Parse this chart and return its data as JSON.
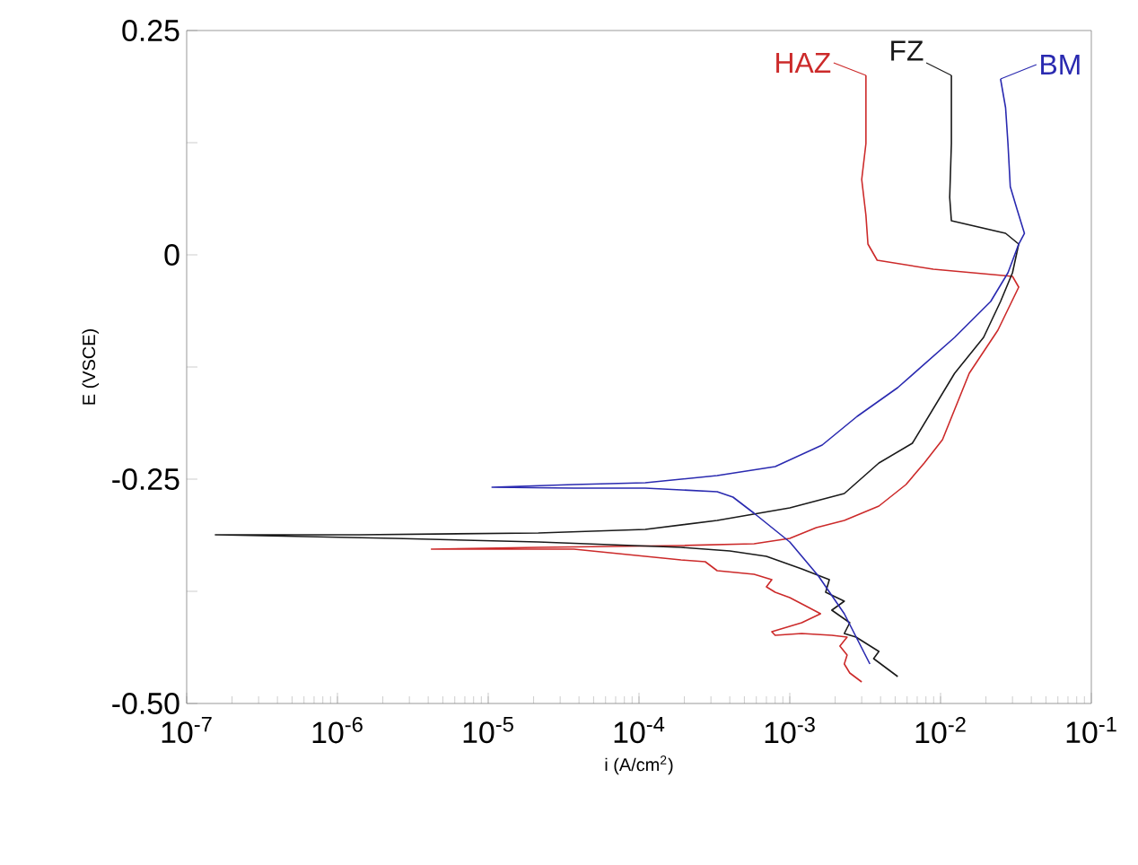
{
  "chart_data": {
    "type": "line",
    "xlabel": "i (A/cm$^{2}$)",
    "ylabel": "E (VSCE)",
    "log": "x",
    "xlim": [
      1e-07,
      0.1
    ],
    "ylim": [
      -0.5,
      0.25
    ],
    "xticks": [
      {
        "value": 1e-07,
        "label": "10$^{-7}$"
      },
      {
        "value": 1e-06,
        "label": "10$^{-6}$"
      },
      {
        "value": 1e-05,
        "label": "10$^{-5}$"
      },
      {
        "value": 0.0001,
        "label": "10$^{-4}$"
      },
      {
        "value": 0.001,
        "label": "10$^{-3}$"
      },
      {
        "value": 0.01,
        "label": "10$^{-2}$"
      },
      {
        "value": 0.1,
        "label": "10$^{-1}$"
      }
    ],
    "yticks": [
      0.25,
      {
        "value": 0.125,
        "label": null
      },
      0,
      {
        "value": -0.125,
        "label": null
      },
      -0.25,
      {
        "value": -0.375,
        "label": null
      },
      {
        "value": -0.5,
        "label": "-0.50"
      }
    ],
    "series": [
      {
        "name": "HAZ",
        "color": "#cc2a2a",
        "x": [
          0.003,
          0.0025,
          0.0023,
          0.0024,
          0.00215,
          0.0024,
          0.0019,
          0.0012,
          0.0008,
          0.00076,
          0.0012,
          0.0016,
          0.0013,
          0.001,
          0.0008,
          0.0007,
          0.00076,
          0.00058,
          0.00033,
          0.000275,
          0.00019,
          3.7e-05,
          4.2e-06,
          2.15e-05,
          0.00019,
          0.00058,
          0.001,
          0.0015,
          0.0023,
          0.0039,
          0.0059,
          0.0078,
          0.0103,
          0.0155,
          0.024,
          0.033,
          0.03,
          0.00895,
          0.0038,
          0.0033,
          0.0032,
          0.003,
          0.0032,
          0.0032
        ],
        "values": [
          -0.476,
          -0.466,
          -0.456,
          -0.446,
          -0.436,
          -0.426,
          -0.424,
          -0.422,
          -0.424,
          -0.42,
          -0.41,
          -0.4,
          -0.392,
          -0.382,
          -0.376,
          -0.37,
          -0.362,
          -0.356,
          -0.352,
          -0.342,
          -0.34,
          -0.328,
          -0.328,
          -0.326,
          -0.324,
          -0.322,
          -0.316,
          -0.304,
          -0.296,
          -0.28,
          -0.256,
          -0.232,
          -0.206,
          -0.132,
          -0.084,
          -0.036,
          -0.024,
          -0.016,
          -0.006,
          0.012,
          0.044,
          0.084,
          0.124,
          0.2
        ]
      },
      {
        "name": "FZ",
        "color": "#1a1a1a",
        "x": [
          0.0052,
          0.0036,
          0.0039,
          0.00275,
          0.0023,
          0.0025,
          0.0019,
          0.0023,
          0.00173,
          0.00183,
          0.0012,
          0.0007,
          0.0004,
          0.00019,
          2.15e-05,
          2.4e-06,
          1.55e-07,
          1.4e-06,
          2.15e-05,
          0.00011,
          0.00033,
          0.001,
          0.0023,
          0.0039,
          0.0065,
          0.0124,
          0.0193,
          0.025,
          0.03,
          0.033,
          0.027,
          0.0118,
          0.0115,
          0.0118,
          0.0118
        ],
        "values": [
          -0.47,
          -0.45,
          -0.442,
          -0.426,
          -0.422,
          -0.41,
          -0.396,
          -0.386,
          -0.376,
          -0.362,
          -0.35,
          -0.336,
          -0.33,
          -0.326,
          -0.32,
          -0.316,
          -0.312,
          -0.312,
          -0.31,
          -0.306,
          -0.296,
          -0.282,
          -0.266,
          -0.232,
          -0.21,
          -0.132,
          -0.092,
          -0.052,
          -0.02,
          0.012,
          0.024,
          0.038,
          0.064,
          0.124,
          0.2
        ]
      },
      {
        "name": "BM",
        "color": "#2a2ab0",
        "x": [
          0.0034,
          0.0023,
          0.00155,
          0.001,
          0.00058,
          0.00042,
          0.00033,
          0.00011,
          3.7e-05,
          1.06e-05,
          3.7e-05,
          0.00011,
          0.00033,
          0.0008,
          0.00164,
          0.0028,
          0.0052,
          0.0124,
          0.0215,
          0.028,
          0.033,
          0.036,
          0.032,
          0.029,
          0.028,
          0.027,
          0.025
        ],
        "values": [
          -0.456,
          -0.4,
          -0.358,
          -0.32,
          -0.288,
          -0.27,
          -0.264,
          -0.26,
          -0.26,
          -0.259,
          -0.256,
          -0.254,
          -0.246,
          -0.236,
          -0.212,
          -0.18,
          -0.148,
          -0.092,
          -0.052,
          -0.02,
          0.012,
          0.024,
          0.052,
          0.076,
          0.124,
          0.164,
          0.196
        ]
      }
    ]
  }
}
